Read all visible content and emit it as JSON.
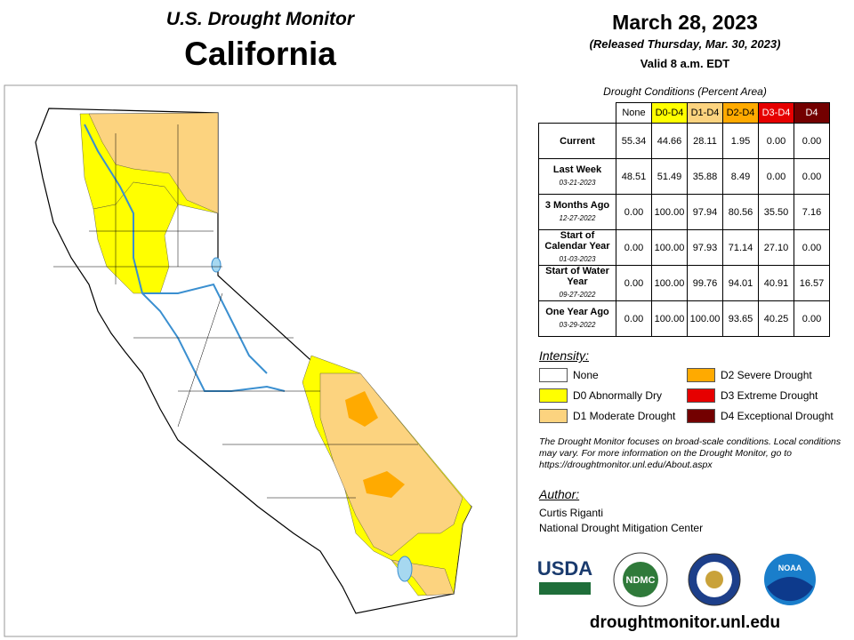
{
  "header": {
    "program": "U.S. Drought Monitor",
    "state": "California",
    "date": "March 28, 2023",
    "released": "(Released Thursday, Mar. 30, 2023)",
    "valid": "Valid 8 a.m. EDT"
  },
  "table": {
    "caption": "Drought Conditions (Percent Area)",
    "columns": [
      "None",
      "D0-D4",
      "D1-D4",
      "D2-D4",
      "D3-D4",
      "D4"
    ],
    "rows": [
      {
        "label": "Current",
        "values": [
          "55.34",
          "44.66",
          "28.11",
          "1.95",
          "0.00",
          "0.00"
        ]
      },
      {
        "label": "Last Week",
        "date": "03-21-2023",
        "values": [
          "48.51",
          "51.49",
          "35.88",
          "8.49",
          "0.00",
          "0.00"
        ]
      },
      {
        "label": "3 Months Ago",
        "date": "12-27-2022",
        "values": [
          "0.00",
          "100.00",
          "97.94",
          "80.56",
          "35.50",
          "7.16"
        ]
      },
      {
        "label": "Start of Calendar Year",
        "date": "01-03-2023",
        "values": [
          "0.00",
          "100.00",
          "97.93",
          "71.14",
          "27.10",
          "0.00"
        ]
      },
      {
        "label": "Start of Water Year",
        "date": "09-27-2022",
        "values": [
          "0.00",
          "100.00",
          "99.76",
          "94.01",
          "40.91",
          "16.57"
        ]
      },
      {
        "label": "One Year Ago",
        "date": "03-29-2022",
        "values": [
          "0.00",
          "100.00",
          "100.00",
          "93.65",
          "40.25",
          "0.00"
        ]
      }
    ]
  },
  "legend": {
    "title": "Intensity:",
    "items": [
      {
        "label": "None",
        "color": "#ffffff"
      },
      {
        "label": "D0 Abnormally Dry",
        "color": "#ffff00"
      },
      {
        "label": "D1 Moderate Drought",
        "color": "#fcd37f"
      },
      {
        "label": "D2 Severe Drought",
        "color": "#ffaa00"
      },
      {
        "label": "D3 Extreme Drought",
        "color": "#e60000"
      },
      {
        "label": "D4 Exceptional Drought",
        "color": "#730000"
      }
    ]
  },
  "note": "The Drought Monitor focuses on broad-scale conditions. Local conditions may vary. For more information on the Drought Monitor, go to https://droughtmonitor.unl.edu/About.aspx",
  "author": {
    "title": "Author:",
    "name": "Curtis Riganti",
    "org": "National Drought Mitigation Center"
  },
  "logos": [
    "USDA",
    "NDMC",
    "NOAA"
  ],
  "footer": {
    "url": "droughtmonitor.unl.edu"
  }
}
